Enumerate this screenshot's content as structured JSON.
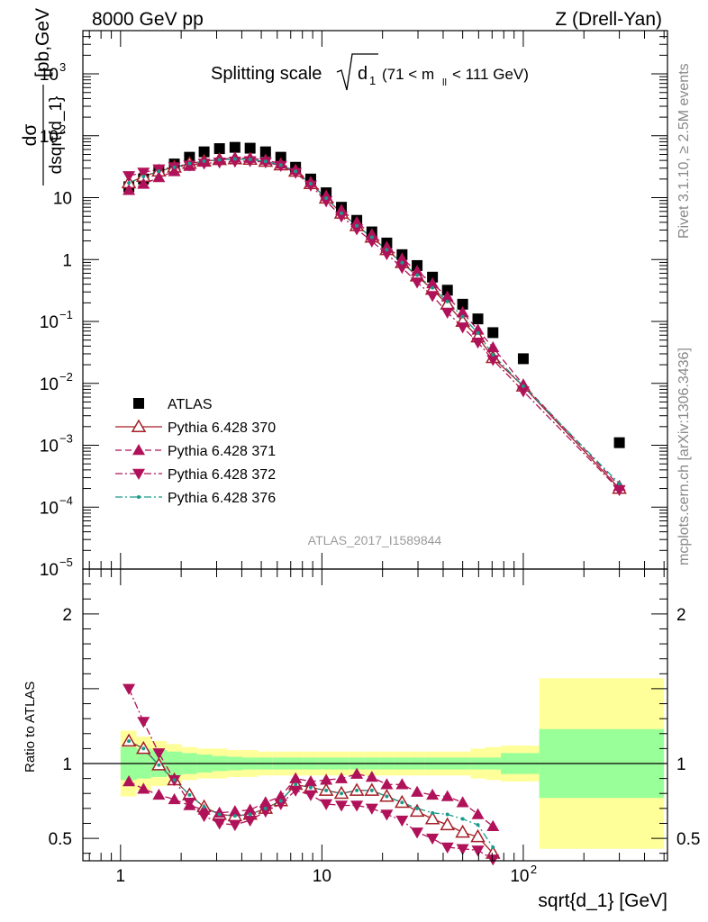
{
  "header": {
    "left": "8000 GeV pp",
    "right": "Z (Drell-Yan)"
  },
  "side_text": {
    "rivet": "Rivet 3.1.10, ≥ 2.5M events",
    "mcplots": "mcplots.cern.ch [arXiv:1306.3436]"
  },
  "plot_title": {
    "main": "Splitting scale",
    "symbol": "d",
    "symbol_sub": "1",
    "range_left": "(71 < m",
    "range_sub": "ll",
    "range_right": "< 111 GeV)"
  },
  "analysis_label": "ATLAS_2017_I1589844",
  "ylabel_top": {
    "num": "dσ",
    "den": "dsqrt{d_1}",
    "unit": "[pb,GeV",
    "unit_sup": "-1",
    "unit_close": "]"
  },
  "ylabel_bottom": "Ratio to ATLAS",
  "xlabel": "sqrt{d_1} [GeV]",
  "legend": [
    {
      "label": "ATLAS",
      "color": "#000000",
      "marker": "square",
      "line": "none"
    },
    {
      "label": "Pythia 6.428 370",
      "color": "#a31f26",
      "marker": "open-triangle-up",
      "line": "solid"
    },
    {
      "label": "Pythia 6.428 371",
      "color": "#b0125a",
      "marker": "triangle-up",
      "line": "dashed"
    },
    {
      "label": "Pythia 6.428 372",
      "color": "#b0125a",
      "marker": "triangle-down",
      "line": "dashdot"
    },
    {
      "label": "Pythia 6.428 376",
      "color": "#1a9a8a",
      "marker": "dot",
      "line": "dashdot"
    }
  ],
  "chart_data": [
    {
      "type": "scatter",
      "panel": "main",
      "x_scale": "log",
      "y_scale": "log",
      "xlim": [
        0.65,
        520
      ],
      "ylim": [
        1e-05,
        5000
      ],
      "x_ticks": [
        {
          "value": 1,
          "label": "1"
        },
        {
          "value": 10,
          "label": "10"
        },
        {
          "value": 100,
          "label": "10",
          "sup": "2"
        }
      ],
      "y_ticks": [
        {
          "value": 1e-05,
          "label": "10",
          "sup": "−5"
        },
        {
          "value": 0.0001,
          "label": "10",
          "sup": "−4"
        },
        {
          "value": 0.001,
          "label": "10",
          "sup": "−3"
        },
        {
          "value": 0.01,
          "label": "10",
          "sup": "−2"
        },
        {
          "value": 0.1,
          "label": "10",
          "sup": "−1"
        },
        {
          "value": 1,
          "label": "1"
        },
        {
          "value": 10,
          "label": "10"
        },
        {
          "value": 100,
          "label": "10",
          "sup": "2"
        },
        {
          "value": 1000,
          "label": "10",
          "sup": "3"
        }
      ],
      "series": [
        {
          "name": "ATLAS",
          "x": [
            1.1,
            1.3,
            1.55,
            1.85,
            2.2,
            2.6,
            3.1,
            3.7,
            4.4,
            5.25,
            6.25,
            7.4,
            8.8,
            10.5,
            12.5,
            14.9,
            17.7,
            21,
            25,
            29.7,
            35.4,
            42,
            50,
            59.5,
            70.7,
            100,
            300
          ],
          "y": [
            15,
            20,
            27,
            35,
            45,
            55,
            62,
            65,
            63,
            55,
            45,
            31,
            20,
            12,
            7,
            4.3,
            2.8,
            1.85,
            1.2,
            0.8,
            0.52,
            0.32,
            0.19,
            0.11,
            0.066,
            0.025,
            0.0011
          ]
        },
        {
          "name": "Pythia 6.428 370",
          "x": [
            1.1,
            1.3,
            1.55,
            1.85,
            2.2,
            2.6,
            3.1,
            3.7,
            4.4,
            5.25,
            6.25,
            7.4,
            8.8,
            10.5,
            12.5,
            14.9,
            17.7,
            21,
            25,
            29.7,
            35.4,
            42,
            50,
            59.5,
            70.7,
            100,
            300
          ],
          "y": [
            17.3,
            22,
            26.8,
            31,
            35.6,
            38.9,
            41.1,
            42.2,
            41.5,
            38.5,
            33.7,
            26.7,
            16.8,
            9.8,
            5.6,
            3.52,
            2.29,
            1.44,
            0.89,
            0.54,
            0.33,
            0.19,
            0.1,
            0.056,
            0.026,
            0.009,
            0.0002
          ]
        },
        {
          "name": "Pythia 6.428 371",
          "x": [
            1.1,
            1.3,
            1.55,
            1.85,
            2.2,
            2.6,
            3.1,
            3.7,
            4.4,
            5.25,
            6.25,
            7.4,
            8.8,
            10.5,
            12.5,
            14.9,
            17.7,
            21,
            25,
            29.7,
            35.4,
            42,
            50,
            59.5,
            70.7,
            100,
            300
          ],
          "y": [
            13.2,
            16.6,
            21.3,
            26.6,
            32.4,
            37.7,
            41.4,
            43.9,
            43.5,
            40.7,
            35.3,
            28,
            17.6,
            10.7,
            6.3,
            4,
            2.55,
            1.59,
            1.03,
            0.65,
            0.41,
            0.25,
            0.14,
            0.073,
            0.038,
            0.0095,
            0.00022
          ]
        },
        {
          "name": "Pythia 6.428 372",
          "x": [
            1.1,
            1.3,
            1.55,
            1.85,
            2.2,
            2.6,
            3.1,
            3.7,
            4.4,
            5.25,
            6.25,
            7.4,
            8.8,
            10.5,
            12.5,
            14.9,
            17.7,
            21,
            25,
            29.7,
            35.4,
            42,
            50,
            59.5,
            70.7,
            100,
            300
          ],
          "y": [
            22.5,
            25.6,
            28.9,
            31.2,
            33.3,
            35.7,
            37.3,
            38.5,
            39.2,
            37.4,
            32.9,
            25.4,
            15.8,
            8.8,
            5,
            3.1,
            1.97,
            1.23,
            0.74,
            0.43,
            0.26,
            0.14,
            0.081,
            0.046,
            0.024,
            0.0075,
            0.00019
          ]
        },
        {
          "name": "Pythia 6.428 376",
          "x": [
            1.1,
            1.3,
            1.55,
            1.85,
            2.2,
            2.6,
            3.1,
            3.7,
            4.4,
            5.25,
            6.25,
            7.4,
            8.8,
            10.5,
            12.5,
            14.9,
            17.7,
            21,
            25,
            29.7,
            35.4,
            42,
            50,
            59.5,
            70.7,
            100,
            300
          ],
          "y": [
            17.3,
            22,
            26.8,
            31,
            35.6,
            38.9,
            41.1,
            42.2,
            41.5,
            38.5,
            33.7,
            26.7,
            16.8,
            9.8,
            5.6,
            3.52,
            2.29,
            1.44,
            0.89,
            0.56,
            0.35,
            0.21,
            0.12,
            0.065,
            0.029,
            0.009,
            0.00024
          ]
        }
      ]
    },
    {
      "type": "scatter",
      "panel": "ratio",
      "x_scale": "log",
      "xlim": [
        0.65,
        520
      ],
      "ylim": [
        0.35,
        2.3
      ],
      "y_ticks": [
        {
          "value": 0.5,
          "label": "0.5"
        },
        {
          "value": 1,
          "label": "1"
        },
        {
          "value": 2,
          "label": "2"
        }
      ],
      "reference_line": 1,
      "bands": {
        "bins": [
          [
            1,
            1.2
          ],
          [
            1.2,
            1.42
          ],
          [
            1.42,
            1.7
          ],
          [
            1.7,
            2.02
          ],
          [
            2.02,
            2.4
          ],
          [
            2.4,
            2.85
          ],
          [
            2.85,
            3.4
          ],
          [
            3.4,
            4.05
          ],
          [
            4.05,
            4.8
          ],
          [
            4.8,
            5.7
          ],
          [
            5.7,
            6.8
          ],
          [
            6.8,
            8.1
          ],
          [
            8.1,
            9.6
          ],
          [
            9.6,
            11.4
          ],
          [
            11.4,
            13.6
          ],
          [
            13.6,
            16.2
          ],
          [
            16.2,
            19.3
          ],
          [
            19.3,
            22.9
          ],
          [
            22.9,
            27.3
          ],
          [
            27.3,
            32.5
          ],
          [
            32.5,
            38.6
          ],
          [
            38.6,
            46
          ],
          [
            46,
            54.7
          ],
          [
            54.7,
            65
          ],
          [
            65,
            77.4
          ],
          [
            77.4,
            120
          ],
          [
            120,
            500
          ]
        ],
        "stat_half_width": [
          0.11,
          0.1,
          0.09,
          0.08,
          0.07,
          0.06,
          0.05,
          0.045,
          0.04,
          0.04,
          0.04,
          0.04,
          0.04,
          0.04,
          0.04,
          0.04,
          0.04,
          0.04,
          0.04,
          0.04,
          0.04,
          0.04,
          0.04,
          0.04,
          0.04,
          0.07,
          0.23
        ],
        "total_half_width": [
          0.22,
          0.18,
          0.15,
          0.13,
          0.11,
          0.1,
          0.1,
          0.09,
          0.09,
          0.08,
          0.08,
          0.08,
          0.08,
          0.08,
          0.08,
          0.08,
          0.08,
          0.08,
          0.08,
          0.08,
          0.08,
          0.08,
          0.08,
          0.1,
          0.11,
          0.12,
          0.57
        ],
        "stat_color": "#99ff99",
        "total_color": "#ffff99"
      },
      "series": [
        {
          "name": "Pythia 6.428 370",
          "x": [
            1.1,
            1.3,
            1.55,
            1.85,
            2.2,
            2.6,
            3.1,
            3.7,
            4.4,
            5.25,
            6.25,
            7.4,
            8.8,
            10.5,
            12.5,
            14.9,
            17.7,
            21,
            25,
            29.7,
            35.4,
            42,
            50,
            59.5,
            70.7
          ],
          "y": [
            1.15,
            1.1,
            0.99,
            0.89,
            0.79,
            0.71,
            0.66,
            0.65,
            0.66,
            0.7,
            0.75,
            0.86,
            0.84,
            0.82,
            0.8,
            0.82,
            0.82,
            0.78,
            0.74,
            0.68,
            0.63,
            0.59,
            0.54,
            0.51,
            0.4
          ]
        },
        {
          "name": "Pythia 6.428 371",
          "x": [
            1.1,
            1.3,
            1.55,
            1.85,
            2.2,
            2.6,
            3.1,
            3.7,
            4.4,
            5.25,
            6.25,
            7.4,
            8.8,
            10.5,
            12.5,
            14.9,
            17.7,
            21,
            25,
            29.7,
            35.4,
            42,
            50,
            59.5,
            70.7
          ],
          "y": [
            0.88,
            0.83,
            0.79,
            0.76,
            0.72,
            0.69,
            0.67,
            0.68,
            0.69,
            0.74,
            0.78,
            0.9,
            0.88,
            0.89,
            0.9,
            0.93,
            0.91,
            0.86,
            0.86,
            0.81,
            0.79,
            0.78,
            0.74,
            0.66,
            0.58
          ]
        },
        {
          "name": "Pythia 6.428 372",
          "x": [
            1.1,
            1.3,
            1.55,
            1.85,
            2.2,
            2.6,
            3.1,
            3.7,
            4.4,
            5.25,
            6.25,
            7.4,
            8.8,
            10.5,
            12.5,
            14.9,
            17.7,
            21,
            25,
            29.7,
            35.4,
            42,
            50,
            59.5,
            70.7
          ],
          "y": [
            1.5,
            1.28,
            1.07,
            0.89,
            0.74,
            0.65,
            0.6,
            0.59,
            0.62,
            0.68,
            0.73,
            0.82,
            0.79,
            0.73,
            0.72,
            0.72,
            0.7,
            0.66,
            0.62,
            0.54,
            0.5,
            0.44,
            0.43,
            0.42,
            0.36
          ]
        },
        {
          "name": "Pythia 6.428 376",
          "x": [
            1.1,
            1.3,
            1.55,
            1.85,
            2.2,
            2.6,
            3.1,
            3.7,
            4.4,
            5.25,
            6.25,
            7.4,
            8.8,
            10.5,
            12.5,
            14.9,
            17.7,
            21,
            25,
            29.7,
            35.4,
            42,
            50,
            59.5,
            70.7
          ],
          "y": [
            1.15,
            1.1,
            0.99,
            0.89,
            0.79,
            0.71,
            0.66,
            0.65,
            0.66,
            0.7,
            0.75,
            0.86,
            0.84,
            0.82,
            0.8,
            0.82,
            0.82,
            0.78,
            0.74,
            0.7,
            0.67,
            0.66,
            0.63,
            0.59,
            0.44
          ]
        }
      ]
    }
  ]
}
